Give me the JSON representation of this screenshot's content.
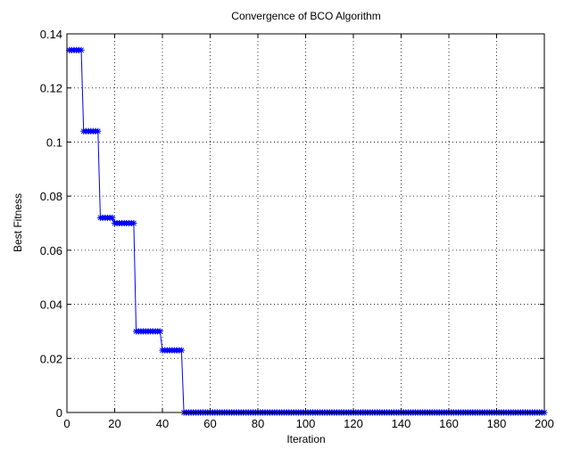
{
  "chart_data": {
    "type": "line",
    "title": "Convergence of BCO Algorithm",
    "xlabel": "Iteration",
    "ylabel": "Best Fitness",
    "xlim": [
      0,
      200
    ],
    "ylim": [
      0,
      0.14
    ],
    "grid": true,
    "x_ticks": [
      "0",
      "20",
      "40",
      "60",
      "80",
      "100",
      "120",
      "140",
      "160",
      "180",
      "200"
    ],
    "y_ticks": [
      "0",
      "0.02",
      "0.04",
      "0.06",
      "0.08",
      "0.1",
      "0.12",
      "0.14"
    ],
    "series": [
      {
        "marker": "asterisk",
        "color": "#0000ff",
        "steps": [
          {
            "from": 1,
            "to": 6,
            "value": 0.134
          },
          {
            "from": 7,
            "to": 13,
            "value": 0.104
          },
          {
            "from": 14,
            "to": 19,
            "value": 0.072
          },
          {
            "from": 20,
            "to": 28,
            "value": 0.07
          },
          {
            "from": 29,
            "to": 39,
            "value": 0.03
          },
          {
            "from": 40,
            "to": 48,
            "value": 0.023
          },
          {
            "from": 49,
            "to": 200,
            "value": 0.0
          }
        ]
      }
    ]
  }
}
